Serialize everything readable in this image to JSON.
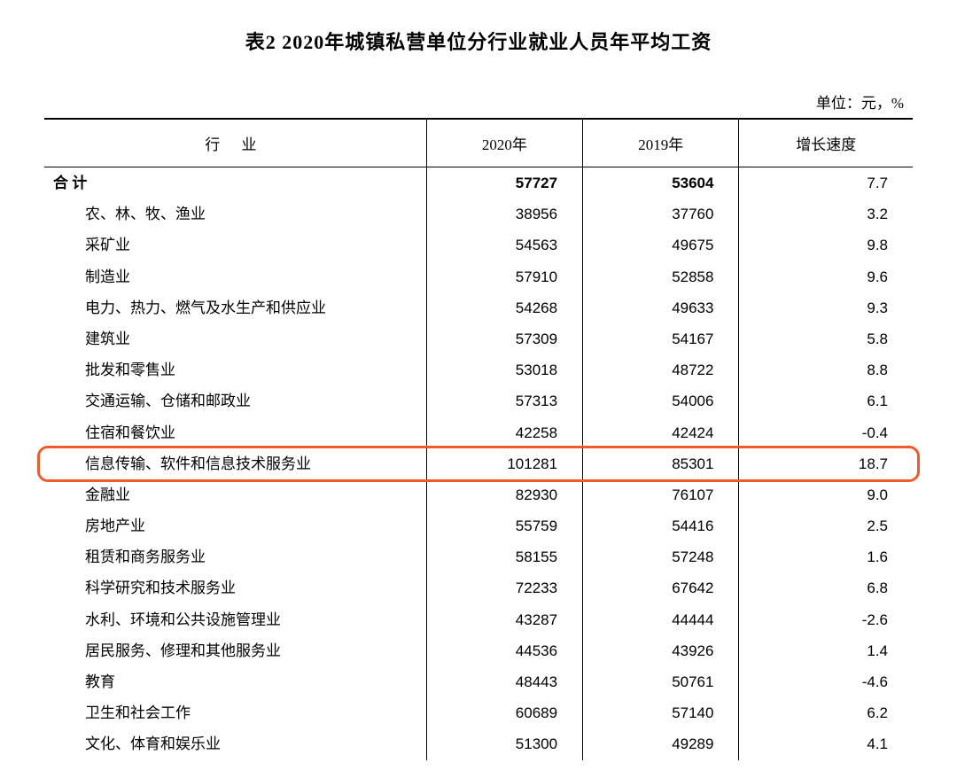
{
  "title": "表2  2020年城镇私营单位分行业就业人员年平均工资",
  "unit_label": "单位：元，%",
  "columns": {
    "industry": "行 业",
    "y2020": "2020年",
    "y2019": "2019年",
    "growth": "增长速度"
  },
  "total_row": {
    "label": "合  计",
    "y2020": "57727",
    "y2019": "53604",
    "growth": "7.7"
  },
  "rows": [
    {
      "label": "农、林、牧、渔业",
      "y2020": "38956",
      "y2019": "37760",
      "growth": "3.2"
    },
    {
      "label": "采矿业",
      "y2020": "54563",
      "y2019": "49675",
      "growth": "9.8"
    },
    {
      "label": "制造业",
      "y2020": "57910",
      "y2019": "52858",
      "growth": "9.6"
    },
    {
      "label": "电力、热力、燃气及水生产和供应业",
      "y2020": "54268",
      "y2019": "49633",
      "growth": "9.3"
    },
    {
      "label": "建筑业",
      "y2020": "57309",
      "y2019": "54167",
      "growth": "5.8"
    },
    {
      "label": "批发和零售业",
      "y2020": "53018",
      "y2019": "48722",
      "growth": "8.8"
    },
    {
      "label": "交通运输、仓储和邮政业",
      "y2020": "57313",
      "y2019": "54006",
      "growth": "6.1"
    },
    {
      "label": "住宿和餐饮业",
      "y2020": "42258",
      "y2019": "42424",
      "growth": "-0.4"
    },
    {
      "label": "信息传输、软件和信息技术服务业",
      "y2020": "101281",
      "y2019": "85301",
      "growth": "18.7",
      "highlight": true
    },
    {
      "label": "金融业",
      "y2020": "82930",
      "y2019": "76107",
      "growth": "9.0"
    },
    {
      "label": "房地产业",
      "y2020": "55759",
      "y2019": "54416",
      "growth": "2.5"
    },
    {
      "label": "租赁和商务服务业",
      "y2020": "58155",
      "y2019": "57248",
      "growth": "1.6"
    },
    {
      "label": "科学研究和技术服务业",
      "y2020": "72233",
      "y2019": "67642",
      "growth": "6.8"
    },
    {
      "label": "水利、环境和公共设施管理业",
      "y2020": "43287",
      "y2019": "44444",
      "growth": "-2.6"
    },
    {
      "label": "居民服务、修理和其他服务业",
      "y2020": "44536",
      "y2019": "43926",
      "growth": "1.4"
    },
    {
      "label": "教育",
      "y2020": "48443",
      "y2019": "50761",
      "growth": "-4.6"
    },
    {
      "label": "卫生和社会工作",
      "y2020": "60689",
      "y2019": "57140",
      "growth": "6.2"
    },
    {
      "label": "文化、体育和娱乐业",
      "y2020": "51300",
      "y2019": "49289",
      "growth": "4.1"
    }
  ],
  "style": {
    "highlight_border_color": "#f15a2a",
    "highlight_border_width": 3,
    "highlight_border_radius": 12,
    "text_color": "#000000",
    "background_color": "#ffffff",
    "title_fontsize": 22,
    "body_fontsize": 17
  }
}
